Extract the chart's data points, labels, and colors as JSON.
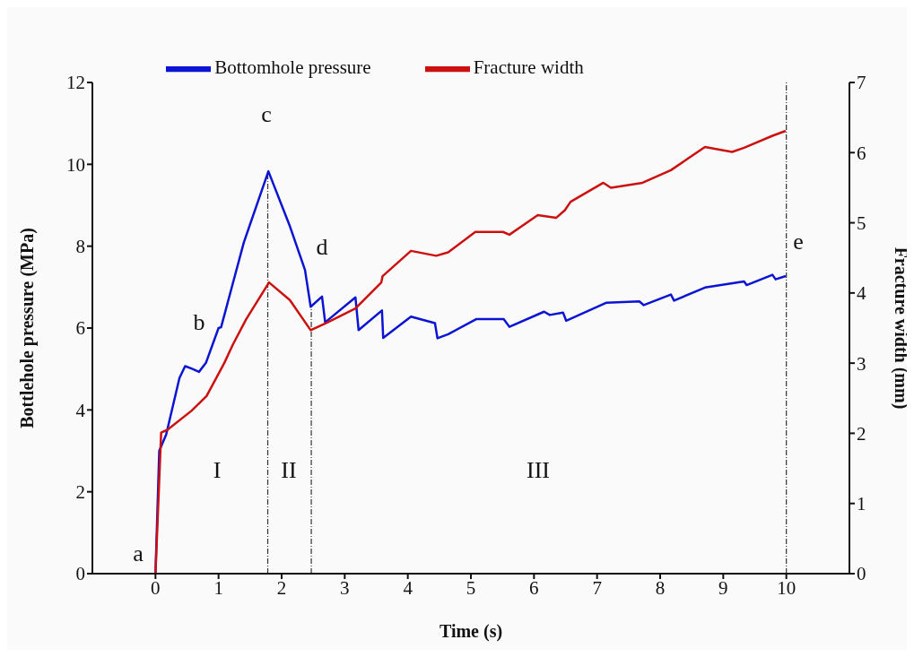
{
  "chart_data": {
    "type": "line",
    "xlabel": "Time (s)",
    "ylabel": "Bottlehole pressure (MPa)",
    "y2label": "Fracture width (mm)",
    "xlim": [
      -1,
      11
    ],
    "xticks": [
      0,
      1,
      2,
      3,
      4,
      5,
      6,
      7,
      8,
      9,
      10
    ],
    "ylim": [
      0,
      12
    ],
    "yticks": [
      0,
      2,
      4,
      6,
      8,
      10,
      12
    ],
    "y2lim": [
      0,
      7
    ],
    "y2ticks": [
      0,
      1,
      2,
      3,
      4,
      5,
      6,
      7
    ],
    "legend": "top",
    "grid": false,
    "marker": "none",
    "line_style": "solid",
    "series": [
      {
        "name": "Bottomhole pressure",
        "color": "#0a14d2",
        "x": [
          0,
          0.06,
          0.17,
          0.38,
          0.47,
          0.57,
          0.69,
          0.8,
          1.0,
          1.04,
          1.4,
          1.79,
          2.13,
          2.37,
          2.46,
          2.64,
          2.69,
          3.17,
          3.22,
          3.59,
          3.61,
          4.05,
          4.43,
          4.47,
          4.64,
          5.09,
          5.52,
          5.61,
          6.16,
          6.25,
          6.46,
          6.51,
          7.15,
          7.67,
          7.74,
          8.17,
          8.22,
          8.71,
          9.33,
          9.37,
          9.78,
          9.83,
          9.99
        ],
        "values": [
          0,
          3.0,
          3.4,
          4.78,
          5.07,
          5.01,
          4.93,
          5.15,
          6.0,
          6.02,
          8.09,
          9.83,
          8.49,
          7.42,
          6.52,
          6.77,
          6.14,
          6.75,
          5.95,
          6.43,
          5.76,
          6.28,
          6.12,
          5.75,
          5.85,
          6.22,
          6.22,
          6.03,
          6.4,
          6.32,
          6.38,
          6.18,
          6.62,
          6.65,
          6.56,
          6.82,
          6.67,
          6.99,
          7.14,
          7.05,
          7.3,
          7.19,
          7.27
        ]
      },
      {
        "name": "Fracture width",
        "color": "#cc1010",
        "axis": "y2",
        "x": [
          0,
          0.09,
          0.19,
          0.57,
          0.81,
          1.09,
          1.23,
          1.44,
          1.8,
          2.13,
          2.46,
          2.7,
          3.17,
          3.58,
          3.6,
          4.05,
          4.45,
          4.64,
          5.07,
          5.51,
          5.61,
          6.06,
          6.35,
          6.49,
          6.58,
          7.1,
          7.22,
          7.72,
          8.17,
          8.71,
          9.14,
          9.33,
          9.78,
          9.99
        ],
        "values": [
          0,
          2.01,
          2.05,
          2.32,
          2.53,
          3.0,
          3.27,
          3.63,
          4.15,
          3.9,
          3.47,
          3.57,
          3.78,
          4.15,
          4.24,
          4.6,
          4.53,
          4.58,
          4.87,
          4.87,
          4.83,
          5.11,
          5.07,
          5.18,
          5.3,
          5.57,
          5.5,
          5.57,
          5.75,
          6.08,
          6.01,
          6.07,
          6.24,
          6.31
        ]
      }
    ],
    "ref_lines": [
      {
        "axis": "x",
        "value": 1.78,
        "color": "#333333",
        "line_style": "dashdot"
      },
      {
        "axis": "x",
        "value": 2.47,
        "color": "#333333",
        "line_style": "dashdot"
      },
      {
        "axis": "x",
        "value": 10,
        "color": "#333333",
        "line_style": "dashdot"
      }
    ],
    "annotations": [
      "a",
      "b",
      "c",
      "d",
      "e",
      "I",
      "II",
      "III"
    ]
  }
}
